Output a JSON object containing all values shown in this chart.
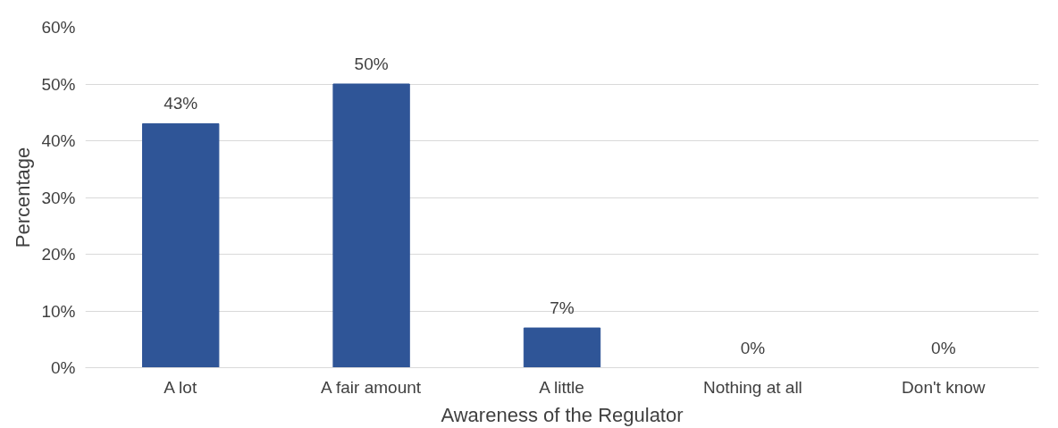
{
  "chart_data": {
    "type": "bar",
    "xlabel": "Awareness of the Regulator",
    "ylabel": "Percentage",
    "categories": [
      "A lot",
      "A fair amount",
      "A little",
      "Nothing at all",
      "Don't know"
    ],
    "values": [
      43,
      50,
      7,
      0,
      0
    ],
    "value_labels": [
      "43%",
      "50%",
      "7%",
      "0%",
      "0%"
    ],
    "color": "#2f5597",
    "ylim": [
      0,
      60
    ],
    "yticks": [
      {
        "value": 0,
        "label": "0%"
      },
      {
        "value": 10,
        "label": "10%"
      },
      {
        "value": 20,
        "label": "20%"
      },
      {
        "value": 30,
        "label": "30%"
      },
      {
        "value": 40,
        "label": "40%"
      },
      {
        "value": 50,
        "label": "50%"
      },
      {
        "value": 60,
        "label": "60%"
      }
    ],
    "grid": "y"
  }
}
